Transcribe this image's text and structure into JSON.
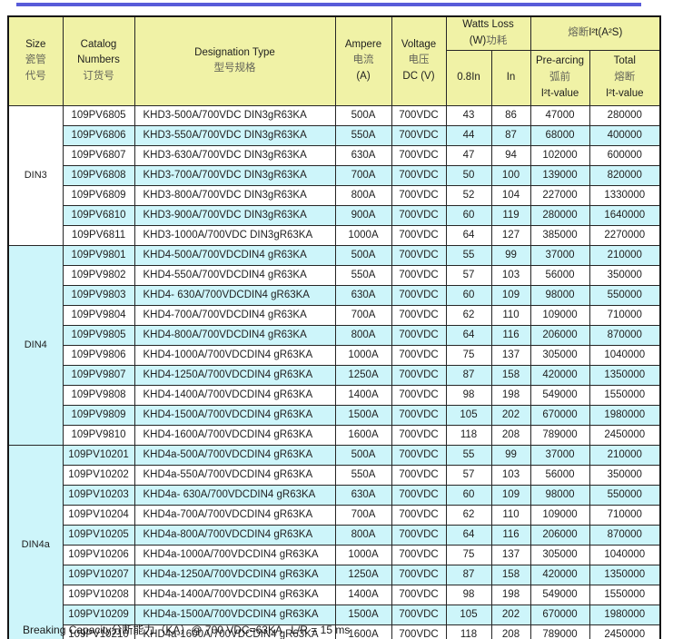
{
  "colors": {
    "header_bg": "#f0f2a6",
    "stripe_bg": "#cdf5fa",
    "top_bar": "#585bd9",
    "border": "#262626"
  },
  "table": {
    "header": {
      "size_lines": [
        "Size",
        "瓷管",
        "代号"
      ],
      "catalog_lines": [
        "Catalog",
        "Numbers",
        "订货号"
      ],
      "designation_lines": [
        "Designation Type",
        "型号规格"
      ],
      "ampere_lines": [
        "Ampere",
        "电流",
        "(A)"
      ],
      "voltage_lines": [
        "Voltage",
        "电压",
        "DC (V)"
      ],
      "watts_loss": {
        "en": "Watts Loss",
        "unit": "(W)",
        "cn": "功耗"
      },
      "i2t_group": {
        "cn": "熔断",
        "en": "I²t(A²S)"
      },
      "sub_0_8in": "0.8In",
      "sub_in": "In",
      "pre_arcing_lines": [
        "Pre-arcing",
        "弧前",
        "I²t-value"
      ],
      "total_lines": [
        "Total",
        "熔断",
        "I²t-value"
      ]
    },
    "groups": [
      {
        "size": "DIN3",
        "rows": [
          {
            "catalog": "109PV6805",
            "designation": "KHD3-500A/700VDC DIN3gR63KA",
            "ampere": "500A",
            "voltage": "700VDC",
            "watts_08in": "43",
            "watts_in": "86",
            "prearcing_i2t": "47000",
            "total_i2t": "280000"
          },
          {
            "catalog": "109PV6806",
            "designation": "KHD3-550A/700VDC DIN3gR63KA",
            "ampere": "550A",
            "voltage": "700VDC",
            "watts_08in": "44",
            "watts_in": "87",
            "prearcing_i2t": "68000",
            "total_i2t": "400000"
          },
          {
            "catalog": "109PV6807",
            "designation": "KHD3-630A/700VDC DIN3gR63KA",
            "ampere": "630A",
            "voltage": "700VDC",
            "watts_08in": "47",
            "watts_in": "94",
            "prearcing_i2t": "102000",
            "total_i2t": "600000"
          },
          {
            "catalog": "109PV6808",
            "designation": "KHD3-700A/700VDC DIN3gR63KA",
            "ampere": "700A",
            "voltage": "700VDC",
            "watts_08in": "50",
            "watts_in": "100",
            "prearcing_i2t": "139000",
            "total_i2t": "820000"
          },
          {
            "catalog": "109PV6809",
            "designation": "KHD3-800A/700VDC DIN3gR63KA",
            "ampere": "800A",
            "voltage": "700VDC",
            "watts_08in": "52",
            "watts_in": "104",
            "prearcing_i2t": "227000",
            "total_i2t": "1330000"
          },
          {
            "catalog": "109PV6810",
            "designation": "KHD3-900A/700VDC DIN3gR63KA",
            "ampere": "900A",
            "voltage": "700VDC",
            "watts_08in": "60",
            "watts_in": "119",
            "prearcing_i2t": "280000",
            "total_i2t": "1640000"
          },
          {
            "catalog": "109PV6811",
            "designation": "KHD3-1000A/700VDC DIN3gR63KA",
            "ampere": "1000A",
            "voltage": "700VDC",
            "watts_08in": "64",
            "watts_in": "127",
            "prearcing_i2t": "385000",
            "total_i2t": "2270000"
          }
        ]
      },
      {
        "size": "DIN4",
        "rows": [
          {
            "catalog": "109PV9801",
            "designation": "KHD4-500A/700VDCDIN4 gR63KA",
            "ampere": "500A",
            "voltage": "700VDC",
            "watts_08in": "55",
            "watts_in": "99",
            "prearcing_i2t": "37000",
            "total_i2t": "210000"
          },
          {
            "catalog": "109PV9802",
            "designation": "KHD4-550A/700VDCDIN4 gR63KA",
            "ampere": "550A",
            "voltage": "700VDC",
            "watts_08in": "57",
            "watts_in": "103",
            "prearcing_i2t": "56000",
            "total_i2t": "350000"
          },
          {
            "catalog": "109PV9803",
            "designation": "KHD4- 630A/700VDCDIN4 gR63KA",
            "ampere": "630A",
            "voltage": "700VDC",
            "watts_08in": "60",
            "watts_in": "109",
            "prearcing_i2t": "98000",
            "total_i2t": "550000"
          },
          {
            "catalog": "109PV9804",
            "designation": "KHD4-700A/700VDCDIN4 gR63KA",
            "ampere": "700A",
            "voltage": "700VDC",
            "watts_08in": "62",
            "watts_in": "110",
            "prearcing_i2t": "109000",
            "total_i2t": "710000"
          },
          {
            "catalog": "109PV9805",
            "designation": "KHD4-800A/700VDCDIN4 gR63KA",
            "ampere": "800A",
            "voltage": "700VDC",
            "watts_08in": "64",
            "watts_in": "116",
            "prearcing_i2t": "206000",
            "total_i2t": "870000"
          },
          {
            "catalog": "109PV9806",
            "designation": "KHD4-1000A/700VDCDIN4 gR63KA",
            "ampere": "1000A",
            "voltage": "700VDC",
            "watts_08in": "75",
            "watts_in": "137",
            "prearcing_i2t": "305000",
            "total_i2t": "1040000"
          },
          {
            "catalog": "109PV9807",
            "designation": "KHD4-1250A/700VDCDIN4 gR63KA",
            "ampere": "1250A",
            "voltage": "700VDC",
            "watts_08in": "87",
            "watts_in": "158",
            "prearcing_i2t": "420000",
            "total_i2t": "1350000"
          },
          {
            "catalog": "109PV9808",
            "designation": "KHD4-1400A/700VDCDIN4 gR63KA",
            "ampere": "1400A",
            "voltage": "700VDC",
            "watts_08in": "98",
            "watts_in": "198",
            "prearcing_i2t": "549000",
            "total_i2t": "1550000"
          },
          {
            "catalog": "109PV9809",
            "designation": "KHD4-1500A/700VDCDIN4 gR63KA",
            "ampere": "1500A",
            "voltage": "700VDC",
            "watts_08in": "105",
            "watts_in": "202",
            "prearcing_i2t": "670000",
            "total_i2t": "1980000"
          },
          {
            "catalog": "109PV9810",
            "designation": "KHD4-1600A/700VDCDIN4 gR63KA",
            "ampere": "1600A",
            "voltage": "700VDC",
            "watts_08in": "118",
            "watts_in": "208",
            "prearcing_i2t": "789000",
            "total_i2t": "2450000"
          }
        ]
      },
      {
        "size": "DIN4a",
        "rows": [
          {
            "catalog": "109PV10201",
            "designation": "KHD4a-500A/700VDCDIN4 gR63KA",
            "ampere": "500A",
            "voltage": "700VDC",
            "watts_08in": "55",
            "watts_in": "99",
            "prearcing_i2t": "37000",
            "total_i2t": "210000"
          },
          {
            "catalog": "109PV10202",
            "designation": "KHD4a-550A/700VDCDIN4 gR63KA",
            "ampere": "550A",
            "voltage": "700VDC",
            "watts_08in": "57",
            "watts_in": "103",
            "prearcing_i2t": "56000",
            "total_i2t": "350000"
          },
          {
            "catalog": "109PV10203",
            "designation": "KHD4a- 630A/700VDCDIN4 gR63KA",
            "ampere": "630A",
            "voltage": "700VDC",
            "watts_08in": "60",
            "watts_in": "109",
            "prearcing_i2t": "98000",
            "total_i2t": "550000"
          },
          {
            "catalog": "109PV10204",
            "designation": "KHD4a-700A/700VDCDIN4 gR63KA",
            "ampere": "700A",
            "voltage": "700VDC",
            "watts_08in": "62",
            "watts_in": "110",
            "prearcing_i2t": "109000",
            "total_i2t": "710000"
          },
          {
            "catalog": "109PV10205",
            "designation": "KHD4a-800A/700VDCDIN4 gR63KA",
            "ampere": "800A",
            "voltage": "700VDC",
            "watts_08in": "64",
            "watts_in": "116",
            "prearcing_i2t": "206000",
            "total_i2t": "870000"
          },
          {
            "catalog": "109PV10206",
            "designation": "KHD4a-1000A/700VDCDIN4 gR63KA",
            "ampere": "1000A",
            "voltage": "700VDC",
            "watts_08in": "75",
            "watts_in": "137",
            "prearcing_i2t": "305000",
            "total_i2t": "1040000"
          },
          {
            "catalog": "109PV10207",
            "designation": "KHD4a-1250A/700VDCDIN4 gR63KA",
            "ampere": "1250A",
            "voltage": "700VDC",
            "watts_08in": "87",
            "watts_in": "158",
            "prearcing_i2t": "420000",
            "total_i2t": "1350000"
          },
          {
            "catalog": "109PV10208",
            "designation": "KHD4a-1400A/700VDCDIN4 gR63KA",
            "ampere": "1400A",
            "voltage": "700VDC",
            "watts_08in": "98",
            "watts_in": "198",
            "prearcing_i2t": "549000",
            "total_i2t": "1550000"
          },
          {
            "catalog": "109PV10209",
            "designation": "KHD4a-1500A/700VDCDIN4 gR63KA",
            "ampere": "1500A",
            "voltage": "700VDC",
            "watts_08in": "105",
            "watts_in": "202",
            "prearcing_i2t": "670000",
            "total_i2t": "1980000"
          },
          {
            "catalog": "109PV10210",
            "designation": "KHD4a-1600A/700VDCDIN4 gR63KA",
            "ampere": "1600A",
            "voltage": "700VDC",
            "watts_08in": "118",
            "watts_in": "208",
            "prearcing_i2t": "789000",
            "total_i2t": "2450000"
          }
        ]
      }
    ]
  },
  "footer": {
    "note": "Breaking Capacity分断能力（KA）@ 700 VDC=63KA   L/R = 15 ms"
  }
}
